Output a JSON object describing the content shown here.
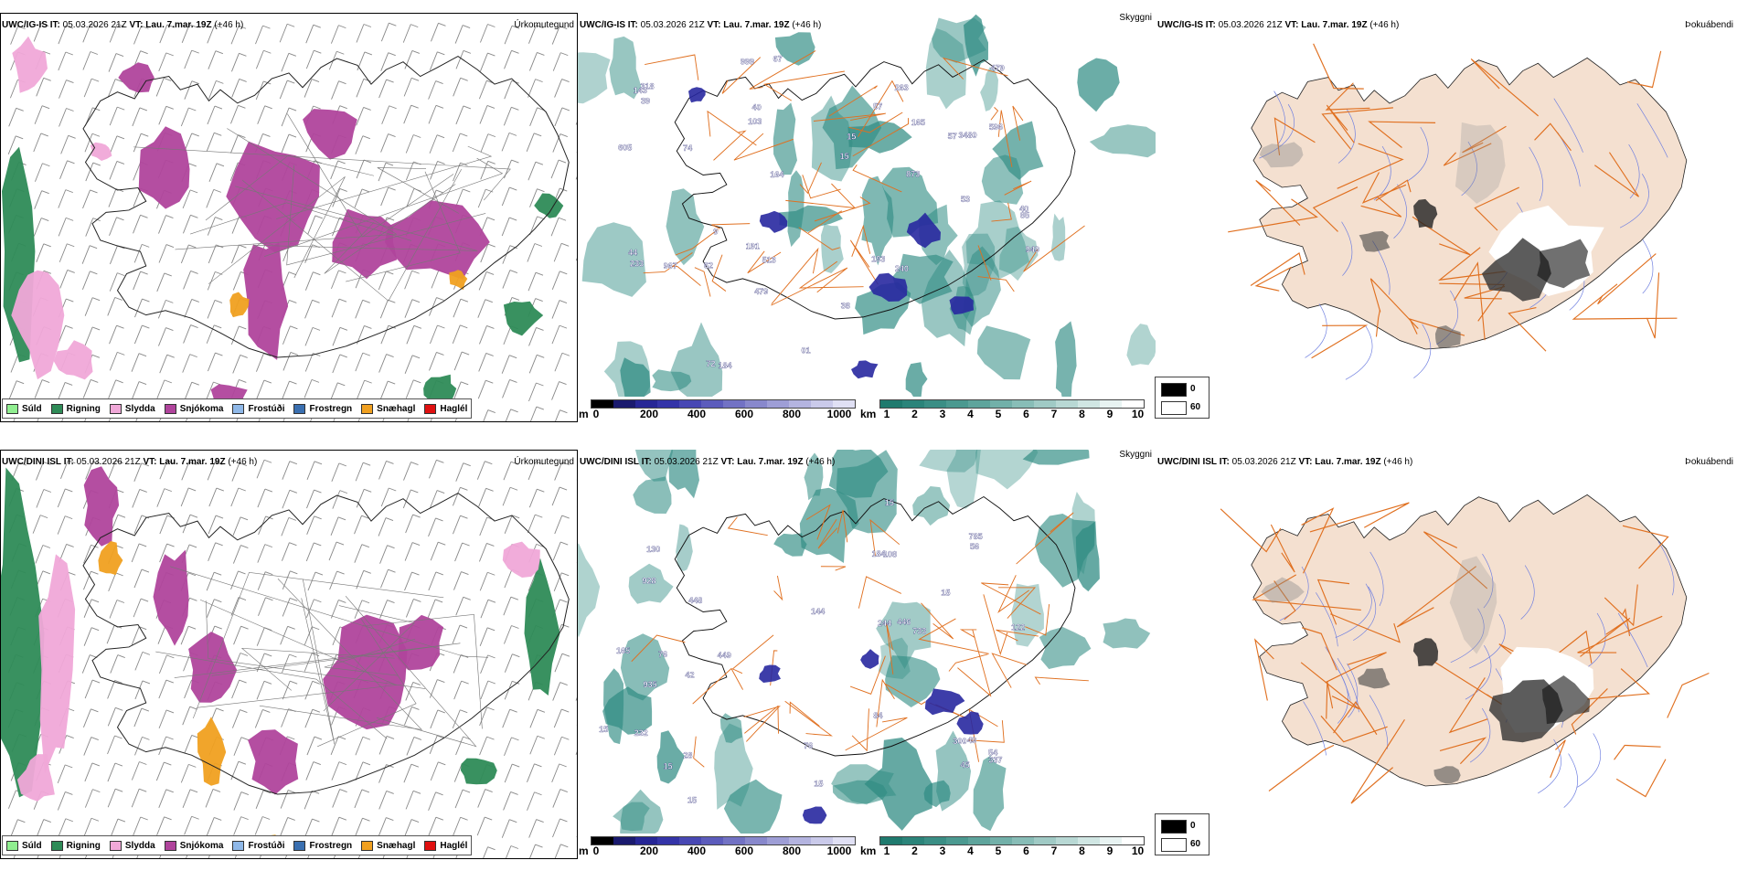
{
  "rows": [
    {
      "model": "UWC/IG-IS",
      "it_label": "IT:",
      "it_value": "05.03.2026 21Z",
      "vt_label": "VT:",
      "vt_value": "Lau. 7.mar. 19Z",
      "lead": "(+46 h)",
      "precip_title": "Úrkomutegund",
      "cloud_title": "Skyggni",
      "fog_title": "Þokuábendi",
      "cloud_labels": [
        "103",
        "15",
        "38",
        "57",
        "3480",
        "263",
        "605",
        "949",
        "01",
        "513",
        "479",
        "62",
        "967",
        "184",
        "191",
        "240",
        "233",
        "318",
        "999",
        "143",
        "53",
        "67",
        "193",
        "479",
        "72",
        "44",
        "57",
        "74",
        "873",
        "40",
        "15",
        "596",
        "164",
        "165",
        "85",
        "39",
        "40",
        "9"
      ]
    },
    {
      "model": "UWC/DINI ISL",
      "it_label": "IT:",
      "it_value": "05.03.2026 21Z",
      "vt_label": "VT:",
      "vt_value": "Lau. 7.mar. 19Z",
      "lead": "(+46 h)",
      "precip_title": "Úrkomutegund",
      "cloud_title": "Skyggni",
      "fog_title": "Þokuábendi",
      "cloud_labels": [
        "232",
        "15",
        "108",
        "15",
        "45",
        "449",
        "54",
        "184",
        "935",
        "76",
        "56",
        "76",
        "446",
        "785",
        "733",
        "337",
        "122",
        "28",
        "130",
        "144",
        "448",
        "84",
        "15",
        "928",
        "300",
        "42",
        "15",
        "15",
        "165",
        "49",
        "15",
        "244"
      ]
    }
  ],
  "precip_legend": [
    {
      "label": "Súld",
      "color": "#90ee90"
    },
    {
      "label": "Rigning",
      "color": "#2e8b57"
    },
    {
      "label": "Slydda",
      "color": "#f0a8d8"
    },
    {
      "label": "Snjókoma",
      "color": "#b0449c"
    },
    {
      "label": "Frostúði",
      "color": "#8fb8e8"
    },
    {
      "label": "Frostregn",
      "color": "#3a6fb0"
    },
    {
      "label": "Snæhagl",
      "color": "#f0a020"
    },
    {
      "label": "Haglél",
      "color": "#e01010"
    }
  ],
  "cloudbase_bar": {
    "unit": "m",
    "ticks": [
      "0",
      "200",
      "400",
      "600",
      "800",
      "1000"
    ],
    "colors": [
      "#000000",
      "#1a1a6e",
      "#262696",
      "#3434a8",
      "#4848b4",
      "#5c5cbc",
      "#7272c4",
      "#8888cc",
      "#9e9ed6",
      "#b4b4e0",
      "#cacaea",
      "#e0e0f4"
    ]
  },
  "visibility_bar": {
    "unit": "km",
    "ticks": [
      "1",
      "2",
      "3",
      "4",
      "5",
      "6",
      "7",
      "8",
      "9",
      "10"
    ],
    "colors": [
      "#1f7a6e",
      "#2b847a",
      "#3a8e85",
      "#4b9990",
      "#5ea49c",
      "#72b0a9",
      "#88bdb7",
      "#a0cac5",
      "#b8d8d4",
      "#d0e6e3",
      "#e8f3f2",
      "#ffffff"
    ]
  },
  "fog_legend": [
    {
      "label": "0",
      "color": "#000000"
    },
    {
      "label": "60",
      "color": "#ffffff"
    }
  ],
  "colors": {
    "land_fill": "#f4e0d0",
    "road": "#e07020",
    "river": "#6f7fe0",
    "coast": "#000000",
    "snow": "#b0449c",
    "rain": "#2e8b57",
    "sleet": "#f0a8d8",
    "graupel": "#f0a020",
    "cloud_teal": "#2e8b82",
    "cloud_blue": "#2828a0"
  }
}
